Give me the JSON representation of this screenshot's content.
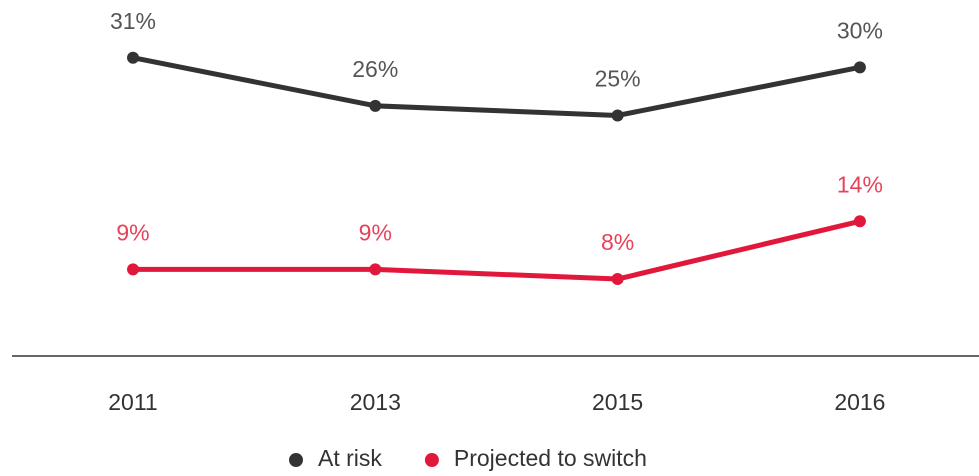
{
  "chart_data": {
    "type": "line",
    "categories": [
      "2011",
      "2013",
      "2015",
      "2016"
    ],
    "ylim": [
      0,
      37
    ],
    "series": [
      {
        "name": "At risk",
        "color": "#333333",
        "label_color": "#555555",
        "values": [
          31,
          26,
          25,
          30
        ],
        "value_labels": [
          "31%",
          "26%",
          "25%",
          "30%"
        ]
      },
      {
        "name": "Projected to switch",
        "color": "#e2173c",
        "label_color": "#e8415c",
        "values": [
          9,
          9,
          8,
          14
        ],
        "value_labels": [
          "9%",
          "9%",
          "8%",
          "14%"
        ]
      }
    ],
    "legend": "bottom"
  }
}
